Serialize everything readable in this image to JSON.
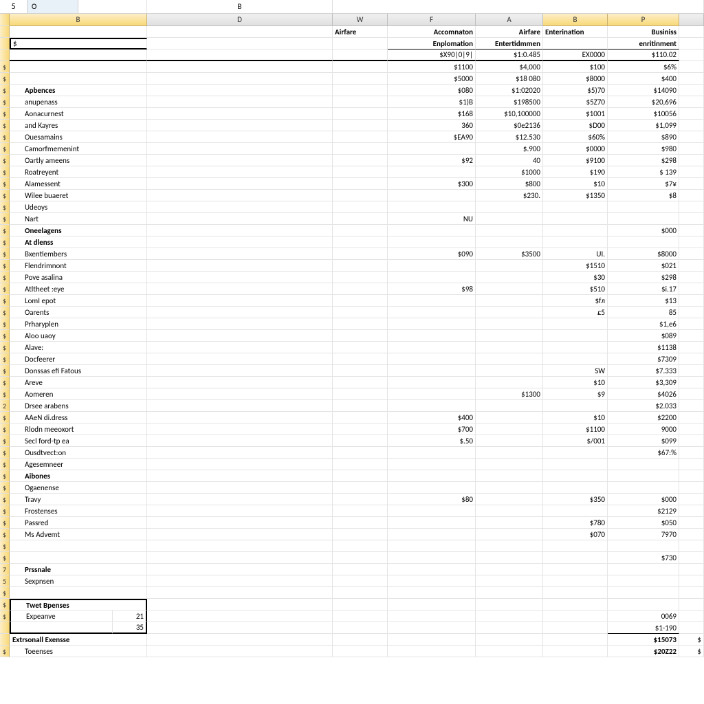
{
  "namebox": {
    "row": "5",
    "col": "O"
  },
  "columns": {
    "B": "B",
    "D": "D",
    "W": "W",
    "F": "F",
    "A": "A",
    "B2": "B",
    "P": "P",
    "formula_B": "B"
  },
  "headers1": {
    "airfare1": "Airfare",
    "accommodation": "Accomnaton",
    "airfare2": "Airfare",
    "entertainment": "Enterination",
    "business": "Businiss"
  },
  "headers2": {
    "exploration": "Enplomation",
    "entertainment": "Entertidmmen",
    "enrichment": "enritinment"
  },
  "headers3": {
    "v1": "$X90|0|9|",
    "v2": "$1:0.485",
    "v3": "EX0000",
    "v4": "$110.02"
  },
  "rows": [
    {
      "b": "",
      "vals": [
        "$1100",
        "$4,000",
        "$100",
        "$6%"
      ]
    },
    {
      "b": "",
      "vals": [
        "$5000",
        "$18 080",
        "$8000",
        "$400"
      ]
    },
    {
      "b": "Apbences",
      "bold": true,
      "vals": [
        "$080",
        "$1:02020",
        "$5)70",
        "$14090"
      ]
    },
    {
      "b": "anupenass",
      "vals": [
        "$1)B",
        "$198500",
        "$5Z70",
        "$20,696"
      ]
    },
    {
      "b": "Aonacurnest",
      "vals": [
        "$168",
        "$10,100000",
        "$1001",
        "$10056"
      ]
    },
    {
      "b": "and Kayres",
      "vals": [
        "360",
        "$0e2136",
        "$D00",
        "$1,099"
      ]
    },
    {
      "b": "Ouesamains",
      "vals": [
        "$EA90",
        "$12.530",
        "$60%",
        "$890"
      ]
    },
    {
      "b": "Camorfmemenint",
      "vals": [
        "",
        "$.900",
        "$0000",
        "$980"
      ]
    },
    {
      "b": "Oartly ameens",
      "vals": [
        "$92",
        "40",
        "$9100",
        "$298"
      ]
    },
    {
      "b": "Roatreyent",
      "vals": [
        "",
        "$1000",
        "$190",
        "$ 139"
      ]
    },
    {
      "b": "Alamessent",
      "vals": [
        "$300",
        "$800",
        "$10",
        "$7¥"
      ]
    },
    {
      "b": "Wilee buaeret",
      "vals": [
        "",
        "$230.",
        "$1350",
        "$8"
      ]
    },
    {
      "b": "Udeoys",
      "vals": [
        "",
        "",
        "",
        ""
      ]
    },
    {
      "b": "Nart",
      "vals": [
        "NU",
        "",
        "",
        ""
      ]
    },
    {
      "b": "Oneelagens",
      "bold": true,
      "vals": [
        "",
        "",
        "",
        "$000"
      ]
    },
    {
      "b": "At dlenss",
      "bold": true,
      "vals": [
        "",
        "",
        "",
        ""
      ]
    },
    {
      "b": "Bxentiembers",
      "vals": [
        "$090",
        "$3500",
        "UI.",
        "$8000"
      ]
    },
    {
      "b": "Flendrimnont",
      "vals": [
        "",
        "",
        "$1510",
        "$021"
      ]
    },
    {
      "b": "Pove asalina",
      "vals": [
        "",
        "",
        "$30",
        "$298"
      ]
    },
    {
      "b": "Atltheet :eye",
      "vals": [
        "$98",
        "",
        "$510",
        "$i.17"
      ]
    },
    {
      "b": "LomI epot",
      "vals": [
        "",
        "",
        "$fл",
        "$13"
      ]
    },
    {
      "b": "Oarents",
      "vals": [
        "",
        "",
        "£5",
        "85"
      ]
    },
    {
      "b": "Prharyplen",
      "vals": [
        "",
        "",
        "",
        "$1,e6"
      ]
    },
    {
      "b": "Aloo uaoy",
      "vals": [
        "",
        "",
        "",
        "$089"
      ]
    },
    {
      "b": "Alave:",
      "vals": [
        "",
        "",
        "",
        "$1138"
      ]
    },
    {
      "b": "Docfeerer",
      "vals": [
        "",
        "",
        "",
        "$7309"
      ]
    },
    {
      "b": "Donssas efi Fatous",
      "vals": [
        "",
        "",
        "SW",
        "$7.333"
      ]
    },
    {
      "b": "Areve",
      "vals": [
        "",
        "",
        "$10",
        "$3,309"
      ]
    },
    {
      "b": "Aomeren",
      "vals": [
        "",
        "$1300",
        "$9",
        "$4026"
      ]
    },
    {
      "b": "Drsee arabens",
      "rh": "2",
      "vals": [
        "",
        "",
        "",
        "$2.033"
      ]
    },
    {
      "b": "AAeN di.dress",
      "vals": [
        "$400",
        "",
        "$10",
        "$2200"
      ]
    },
    {
      "b": "Rlodn meeoxort",
      "vals": [
        "$700",
        "",
        "$1100",
        "9000"
      ]
    },
    {
      "b": "Secl ford-tp ea",
      "vals": [
        "$.50",
        "",
        "$/001",
        "$099"
      ]
    },
    {
      "b": "Ousdtvect:on",
      "vals": [
        "",
        "",
        "",
        "$67:%"
      ]
    },
    {
      "b": "Agesemneer",
      "vals": [
        "",
        "",
        "",
        ""
      ]
    },
    {
      "b": "Aibones",
      "bold": true,
      "vals": [
        "",
        "",
        "",
        ""
      ]
    },
    {
      "b": "Ogaenense",
      "vals": [
        "",
        "",
        "",
        ""
      ]
    },
    {
      "b": "Travy",
      "vals": [
        "$80",
        "",
        "$350",
        "$000"
      ]
    },
    {
      "b": "Frostenses",
      "vals": [
        "",
        "",
        "",
        "$2129"
      ]
    },
    {
      "b": "Passred",
      "vals": [
        "",
        "",
        "$780",
        "$050"
      ]
    },
    {
      "b": "Ms Advemt",
      "vals": [
        "",
        "",
        "$070",
        "7970"
      ]
    },
    {
      "b": "",
      "vals": [
        "",
        "",
        "",
        ""
      ]
    },
    {
      "b": "",
      "vals": [
        "",
        "",
        "",
        "$730"
      ]
    },
    {
      "b": "Prssnale",
      "bold": true,
      "rh": "7",
      "vals": [
        "",
        "",
        "",
        ""
      ]
    },
    {
      "b": "Sexpnsen",
      "rh": "5",
      "vals": [
        "",
        "",
        "",
        ""
      ]
    },
    {
      "b": "",
      "vals": [
        "",
        "",
        "",
        ""
      ]
    }
  ],
  "twet": {
    "label": "Twet Bpenses",
    "bold": true,
    "r1_label": "Expeanve",
    "r1_val": "21",
    "r2_val": "35"
  },
  "bottom": {
    "b1": "Extrsonall Exensse",
    "b2": "Toeenses",
    "p1": "0069",
    "p2": "$1-190",
    "p3": "$15073",
    "p4": "$20Z22",
    "rest_s": "$",
    "rest_s2": "$"
  }
}
